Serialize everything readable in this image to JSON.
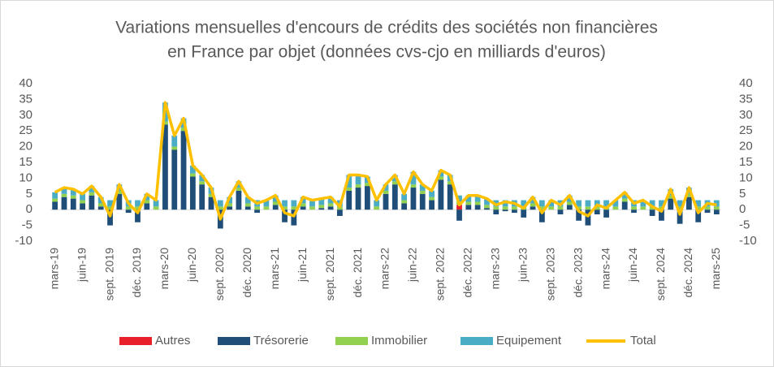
{
  "chart_data": {
    "type": "stacked-bar-line",
    "title": [
      "Variations mensuelles d'encours de crédits des sociétés non financières",
      "en France par objet  (données cvs-cjo en milliards d'euros)"
    ],
    "categories": [
      "mars-19",
      null,
      null,
      "juin-19",
      null,
      null,
      "sept. 2019",
      null,
      null,
      "déc. 2019",
      null,
      null,
      "mars-20",
      null,
      null,
      "juin-20",
      null,
      null,
      "sept. 2020",
      null,
      null,
      "déc. 2020",
      null,
      null,
      "mars-21",
      null,
      null,
      "juin-21",
      null,
      null,
      "sept. 2021",
      null,
      null,
      "déc. 2021",
      null,
      null,
      "mars-22",
      null,
      null,
      "juin-22",
      null,
      null,
      "sept. 2022",
      null,
      null,
      "déc. 2022",
      null,
      null,
      "mars-23",
      null,
      null,
      "juin-23",
      null,
      null,
      "sept. 2023",
      null,
      null,
      "déc. 2023",
      null,
      null,
      "mars-24",
      null,
      null,
      "juin-24",
      null,
      null,
      "sept. 2024",
      null,
      null,
      "déc. 2024",
      null,
      null,
      "mars-25"
    ],
    "series": [
      {
        "name": "Autres",
        "color": "#e8202a",
        "values": [
          0,
          0,
          0,
          0,
          0,
          0,
          0,
          0,
          0,
          0,
          0,
          0,
          0,
          0,
          0,
          0,
          0,
          0,
          0,
          0,
          0,
          0,
          0,
          0,
          0,
          0,
          0,
          0,
          0,
          0,
          0,
          0,
          0,
          0,
          0,
          0,
          0,
          0,
          0,
          0,
          0,
          0,
          0,
          0,
          1.5,
          0,
          0,
          0,
          0,
          0,
          0,
          0,
          0,
          0,
          0,
          0,
          0,
          0,
          0,
          0,
          0,
          0,
          0,
          0,
          0,
          0,
          0,
          0,
          0,
          0,
          0,
          0,
          0
        ]
      },
      {
        "name": "Trésorerie",
        "color": "#1f4e79",
        "values": [
          2.5,
          4,
          3.5,
          2,
          4.5,
          1,
          -5,
          5,
          -1,
          -4,
          2,
          0,
          27,
          19,
          25,
          10.5,
          8,
          4,
          -6,
          1,
          6,
          1,
          -1,
          0,
          1.5,
          -4,
          -5,
          1,
          0,
          0.5,
          1,
          -2,
          6,
          7,
          7.5,
          0,
          5,
          8,
          2,
          7,
          5,
          3,
          9.5,
          8,
          -3.5,
          1.5,
          1.5,
          0.5,
          -1.5,
          -0.5,
          -1,
          -2.5,
          1,
          -4,
          0,
          -1.5,
          1.5,
          -3.5,
          -5,
          -1.5,
          -2.5,
          0,
          2.5,
          -1,
          0,
          -2,
          -3.5,
          3.5,
          -4.5,
          4,
          -4,
          -1,
          -1.5
        ]
      },
      {
        "name": "Immobilier",
        "color": "#92d050",
        "values": [
          1,
          1,
          1,
          1,
          1,
          1,
          1,
          1,
          1,
          1,
          1,
          1,
          1,
          1,
          1,
          1,
          1,
          1,
          1,
          1,
          1,
          1,
          1,
          1,
          1,
          1,
          1,
          1,
          1,
          1,
          1,
          1,
          1,
          1,
          1,
          1,
          1,
          1,
          1,
          1,
          1,
          1,
          1,
          1,
          1,
          1,
          1,
          1,
          1,
          1,
          1,
          1,
          1,
          1,
          1,
          1,
          1,
          1,
          1,
          1,
          1,
          1,
          1,
          1,
          1,
          1,
          1,
          1,
          1,
          1,
          1,
          1,
          1
        ]
      },
      {
        "name": "Equipement",
        "color": "#4bacc6",
        "values": [
          2,
          2,
          2,
          2,
          2,
          2,
          2,
          2,
          2,
          2,
          2,
          2,
          6,
          3.5,
          3,
          2.5,
          2,
          2,
          2,
          2,
          2,
          2,
          2,
          2,
          2,
          2,
          2,
          2,
          2,
          2,
          2,
          2,
          4,
          3,
          2,
          2,
          2,
          2,
          2,
          4,
          2,
          2,
          2,
          2,
          2,
          2,
          2,
          2,
          2,
          2,
          2,
          2,
          2,
          2,
          2,
          2,
          2,
          2,
          2,
          2,
          2,
          2,
          2,
          2,
          2,
          2,
          2,
          2,
          2,
          2,
          2,
          2,
          2
        ]
      },
      {
        "name": "Total",
        "color": "#ffc000",
        "axis": "y2",
        "values": [
          5.5,
          7,
          6.5,
          5,
          7.5,
          4,
          -2,
          8,
          2,
          -1,
          5,
          3,
          34,
          23.5,
          29,
          14,
          11,
          7,
          -3,
          4,
          9,
          4,
          2,
          3,
          4.5,
          -1,
          -2,
          4,
          3,
          3.5,
          4,
          1,
          11,
          11,
          10.5,
          3,
          8,
          11,
          5,
          12,
          8,
          6,
          12.5,
          11,
          1.5,
          4.5,
          4.5,
          3.5,
          1.5,
          2.5,
          2,
          0.5,
          4,
          -1,
          3,
          1.5,
          4.5,
          -0.5,
          -2,
          1.5,
          0.5,
          3,
          5.5,
          2,
          3,
          1,
          -0.5,
          6.5,
          -1.5,
          7,
          -1,
          2,
          1.5
        ]
      }
    ],
    "ylim": [
      -10,
      40
    ],
    "yticks": [
      -10,
      -5,
      0,
      5,
      10,
      15,
      20,
      25,
      30,
      35,
      40
    ],
    "y2lim": [
      -10,
      40
    ],
    "y2ticks": [
      -10,
      -5,
      0,
      5,
      10,
      15,
      20,
      25,
      30,
      35,
      40
    ],
    "grid": false,
    "legend": "bottom"
  }
}
